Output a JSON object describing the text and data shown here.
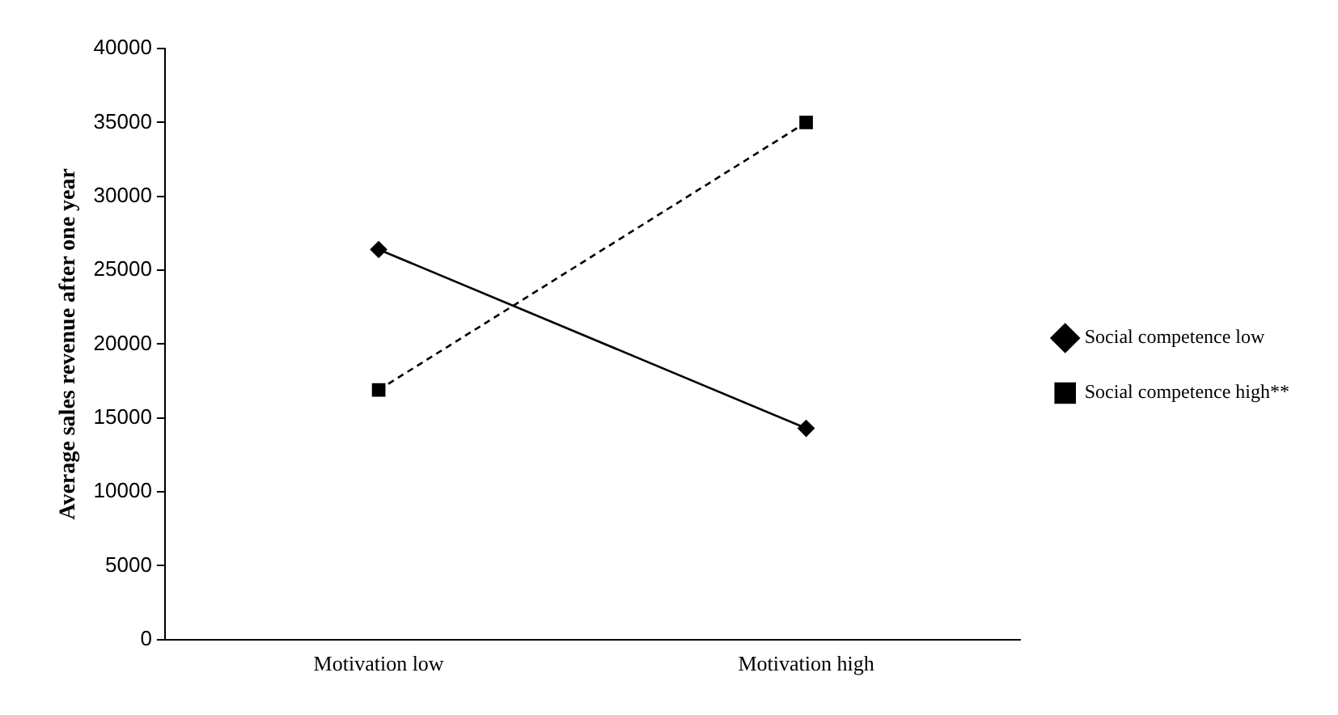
{
  "chart_data": {
    "type": "line",
    "ylabel": "Average sales revenue after one year",
    "categories": [
      "Motivation low",
      "Motivation high"
    ],
    "series": [
      {
        "name": "Social competence low",
        "color": "#000000",
        "values": [
          26400,
          14300
        ],
        "marker": "diamond",
        "line_style": "solid"
      },
      {
        "name": "Social competence high**",
        "color": "#000000",
        "values": [
          16900,
          35000
        ],
        "marker": "square",
        "line_style": "dashed"
      }
    ],
    "ylim": [
      0,
      40000
    ],
    "yticks": [
      0,
      5000,
      10000,
      15000,
      20000,
      25000,
      30000,
      35000,
      40000
    ],
    "grid": false,
    "legend": "right"
  }
}
